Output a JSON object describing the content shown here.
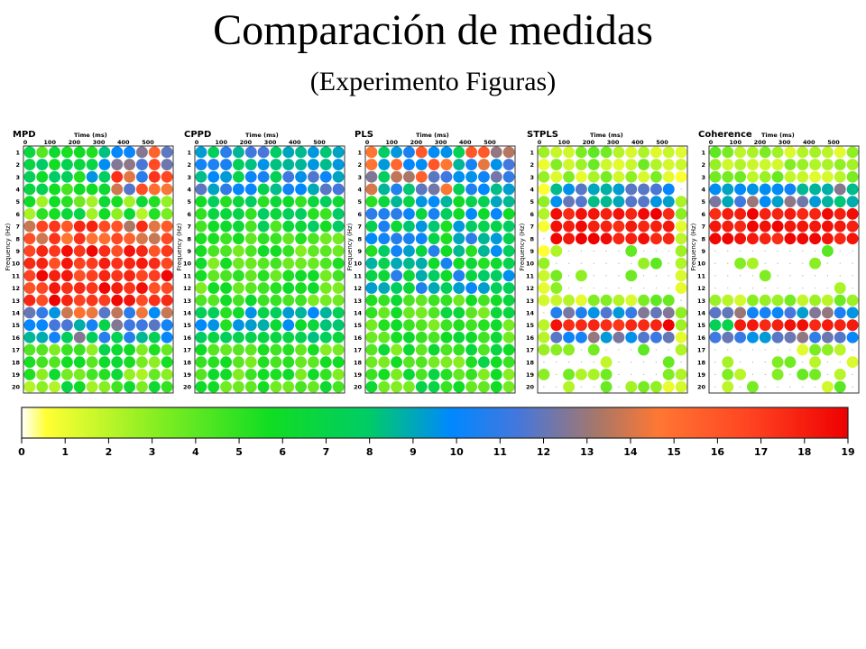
{
  "header": {
    "title": "Comparación de medidas",
    "subtitle": "(Experimento Figuras)"
  },
  "chart_data": {
    "type": "heatmap",
    "panel_titles": [
      "MPD",
      "CPPD",
      "PLS",
      "STPLS",
      "Coherence"
    ],
    "xlabel": "Time (ms)",
    "ylabel": "Frequency (Hz)",
    "x_ticks": [
      "0",
      "100",
      "200",
      "300",
      "400",
      "500"
    ],
    "y_ticks": [
      "1",
      "2",
      "3",
      "4",
      "5",
      "6",
      "7",
      "8",
      "9",
      "10",
      "11",
      "12",
      "13",
      "14",
      "15",
      "16",
      "17",
      "18",
      "19",
      "20"
    ],
    "time_bins": 12,
    "frequency_bins": 20,
    "colorbar": {
      "ticks": [
        "0",
        "1",
        "2",
        "3",
        "4",
        "5",
        "6",
        "7",
        "8",
        "9",
        "10",
        "11",
        "12",
        "13",
        "14",
        "15",
        "16",
        "17",
        "18",
        "19"
      ],
      "range": [
        0,
        19
      ],
      "colors": [
        "#ffffff",
        "#ffff33",
        "#88ee22",
        "#11dd22",
        "#00cc66",
        "#0088ff",
        "#7766aa",
        "#ff7733",
        "#ee0000"
      ]
    },
    "panels_summary": [
      {
        "name": "MPD",
        "strong_bands_hz": [
          7,
          8,
          9,
          10,
          11,
          12,
          13
        ]
      },
      {
        "name": "CPPD",
        "strong_bands_hz": [
          1,
          2,
          3,
          4
        ]
      },
      {
        "name": "PLS",
        "strong_bands_hz": [
          1,
          2,
          3,
          4,
          6,
          7,
          8,
          9,
          10,
          11,
          12
        ]
      },
      {
        "name": "STPLS",
        "strong_bands_hz": [
          4,
          5,
          6,
          7,
          8,
          14,
          15,
          16
        ]
      },
      {
        "name": "Coherence",
        "strong_bands_hz": [
          4,
          5,
          6,
          7,
          8,
          14,
          15,
          16
        ]
      }
    ]
  }
}
